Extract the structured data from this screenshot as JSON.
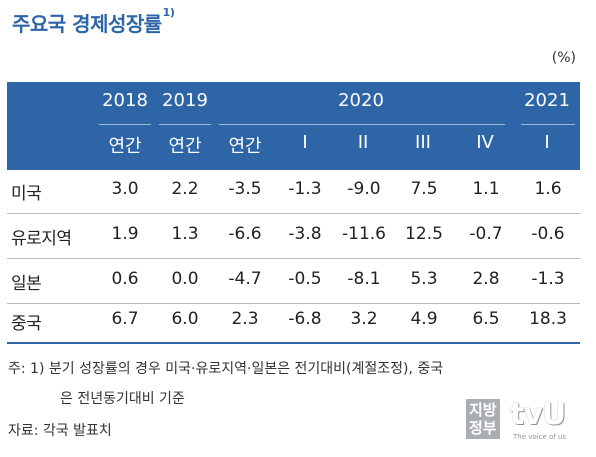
{
  "title": "주요국 경제성장률",
  "title_note": "1)",
  "unit": "(%)",
  "years": [
    "2018",
    "2019",
    "2020",
    "2021"
  ],
  "periods": [
    "연간",
    "연간",
    "연간",
    "I",
    "II",
    "III",
    "IV",
    "I"
  ],
  "rows": [
    {
      "country": "미국",
      "values": [
        "3.0",
        "2.2",
        "-3.5",
        "-1.3",
        "-9.0",
        "7.5",
        "1.1",
        "1.6"
      ]
    },
    {
      "country": "유로지역",
      "values": [
        "1.9",
        "1.3",
        "-6.6",
        "-3.8",
        "-11.6",
        "12.5",
        "-0.7",
        "-0.6"
      ]
    },
    {
      "country": "일본",
      "values": [
        "0.6",
        "0.0",
        "-4.7",
        "-0.5",
        "-8.1",
        "5.3",
        "2.8",
        "-1.3"
      ]
    },
    {
      "country": "중국",
      "values": [
        "6.7",
        "6.0",
        "2.3",
        "-6.8",
        "3.2",
        "4.9",
        "6.5",
        "18.3"
      ]
    }
  ],
  "notes": {
    "note1_prefix": "주: 1)",
    "note1_line1": "분기 성장률의 경우 미국·유로지역·일본은 전기대비(계절조정), 중국",
    "note1_line2": "은 전년동기대비 기준",
    "source": "자료: 각국 발표치"
  },
  "watermark": {
    "left": "지방\n정부",
    "right": "tvU",
    "tagline": "The voice of us"
  },
  "colors": {
    "header_bg": "#2d65a6",
    "title": "#2d65a6"
  }
}
